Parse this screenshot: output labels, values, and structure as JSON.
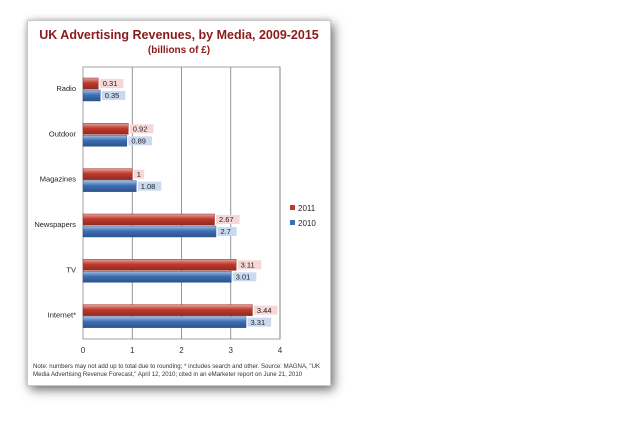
{
  "chart_data": {
    "type": "bar",
    "orientation": "horizontal",
    "title": "UK Advertising Revenues, by Media, 2009-2015",
    "subtitle": "(billions of £)",
    "categories": [
      "Radio",
      "Outdoor",
      "Magazines",
      "Newspapers",
      "TV",
      "Internet*"
    ],
    "series": [
      {
        "name": "2011",
        "color": "#c0392b",
        "label_bg": "#f6d7d7",
        "values": [
          0.31,
          0.92,
          1,
          2.67,
          3.11,
          3.44
        ]
      },
      {
        "name": "2010",
        "color": "#3d6fb5",
        "label_bg": "#c9daf0",
        "values": [
          0.35,
          0.89,
          1.08,
          2.7,
          3.01,
          3.31
        ]
      }
    ],
    "xlim": [
      0,
      4
    ],
    "xticks": [
      "0",
      "1",
      "2",
      "3",
      "4"
    ],
    "grid": true,
    "legend_position": "right",
    "xlabel": "",
    "ylabel": "",
    "note": "Note: numbers may not add up to total due to rounding; * includes search and other. Source: MAGNA, \"UK Media Advertising Revenue Forecast,\" April 12, 2010; cited in an eMarketer report on June 21, 2010"
  }
}
